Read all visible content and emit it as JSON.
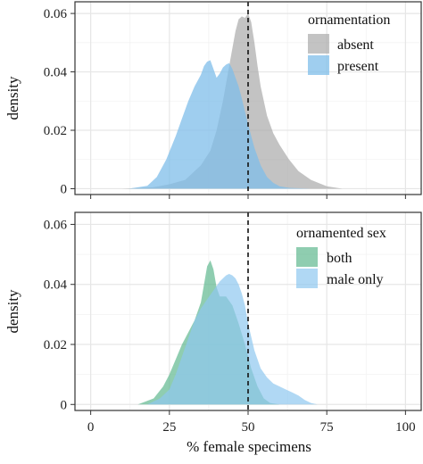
{
  "colors": {
    "panel_bg": "#ffffff",
    "grid_major": "#e6e6e6",
    "grid_minor": "#f2f2f2",
    "panel_border": "#333333",
    "reference_line": "#111111",
    "absent": "#a9a9a9",
    "present": "#7fbde9",
    "both": "#5fb88f",
    "male_only": "#8ec7ef"
  },
  "chart_data": [
    {
      "type": "area",
      "ylabel": "density",
      "xlabel": "",
      "xlim": [
        -5,
        105
      ],
      "ylim": [
        -0.002,
        0.064
      ],
      "xticks": [
        0,
        25,
        50,
        75,
        100
      ],
      "yticks": [
        0,
        0.02,
        0.04,
        0.06
      ],
      "ytick_labels": [
        "0",
        "0.02",
        "0.04",
        "0.06"
      ],
      "reference_line_x": 50,
      "grid": true,
      "legend": {
        "title": "ornamentation",
        "placement": "top-right",
        "items": [
          "absent",
          "present"
        ]
      },
      "series": [
        {
          "name": "absent",
          "color": "#a9a9a9",
          "opacity": 0.7,
          "x": [
            10,
            20,
            25,
            30,
            35,
            38,
            40,
            42,
            44,
            46,
            47,
            48,
            49,
            50,
            51,
            52,
            53,
            54,
            56,
            58,
            60,
            63,
            66,
            70,
            75,
            80
          ],
          "y": [
            0,
            0.0005,
            0.0015,
            0.003,
            0.008,
            0.013,
            0.02,
            0.03,
            0.042,
            0.054,
            0.058,
            0.059,
            0.0585,
            0.06,
            0.057,
            0.05,
            0.042,
            0.035,
            0.025,
            0.019,
            0.015,
            0.01,
            0.006,
            0.003,
            0.0008,
            0
          ]
        },
        {
          "name": "present",
          "color": "#7fbde9",
          "opacity": 0.75,
          "x": [
            12,
            18,
            21,
            24,
            27,
            29,
            31,
            33,
            35,
            36,
            37,
            38,
            39,
            40,
            41,
            42,
            43,
            44,
            45,
            46,
            47,
            48,
            50,
            52,
            54,
            56,
            58,
            60,
            63,
            67,
            70
          ],
          "y": [
            0,
            0.001,
            0.004,
            0.01,
            0.018,
            0.024,
            0.03,
            0.035,
            0.039,
            0.042,
            0.0435,
            0.044,
            0.041,
            0.038,
            0.0395,
            0.0415,
            0.0425,
            0.043,
            0.041,
            0.038,
            0.035,
            0.031,
            0.022,
            0.014,
            0.008,
            0.004,
            0.002,
            0.0008,
            0.0003,
            0.0001,
            0
          ]
        }
      ]
    },
    {
      "type": "area",
      "ylabel": "density",
      "xlabel": "% female specimens",
      "xlim": [
        -5,
        105
      ],
      "ylim": [
        -0.002,
        0.064
      ],
      "xticks": [
        0,
        25,
        50,
        75,
        100
      ],
      "xtick_labels": [
        "0",
        "25",
        "50",
        "75",
        "100"
      ],
      "yticks": [
        0,
        0.02,
        0.04,
        0.06
      ],
      "ytick_labels": [
        "0",
        "0.02",
        "0.04",
        "0.06"
      ],
      "reference_line_x": 50,
      "grid": true,
      "legend": {
        "title": "ornamented sex",
        "placement": "top-right",
        "items": [
          "both",
          "male only"
        ]
      },
      "series": [
        {
          "name": "both",
          "color": "#5fb88f",
          "opacity": 0.7,
          "x": [
            15,
            20,
            23,
            25,
            27,
            29,
            31,
            33,
            35,
            36,
            37,
            38,
            39,
            40,
            41,
            43,
            45,
            47,
            49,
            51,
            53,
            55,
            57,
            60
          ],
          "y": [
            0,
            0.002,
            0.006,
            0.01,
            0.015,
            0.02,
            0.024,
            0.028,
            0.034,
            0.04,
            0.046,
            0.048,
            0.045,
            0.039,
            0.036,
            0.036,
            0.033,
            0.027,
            0.02,
            0.012,
            0.006,
            0.002,
            0.0005,
            0
          ]
        },
        {
          "name": "male only",
          "color": "#8ec7ef",
          "opacity": 0.7,
          "x": [
            18,
            22,
            25,
            27,
            29,
            31,
            33,
            35,
            37,
            39,
            41,
            43,
            44,
            45,
            46,
            47,
            48,
            49,
            50,
            52,
            54,
            56,
            58,
            60,
            62,
            64,
            66,
            68,
            70,
            72
          ],
          "y": [
            0,
            0.002,
            0.005,
            0.01,
            0.016,
            0.022,
            0.028,
            0.032,
            0.035,
            0.038,
            0.041,
            0.043,
            0.0435,
            0.043,
            0.042,
            0.04,
            0.037,
            0.033,
            0.027,
            0.018,
            0.012,
            0.009,
            0.007,
            0.006,
            0.005,
            0.004,
            0.003,
            0.0015,
            0.0005,
            0
          ]
        }
      ]
    }
  ]
}
